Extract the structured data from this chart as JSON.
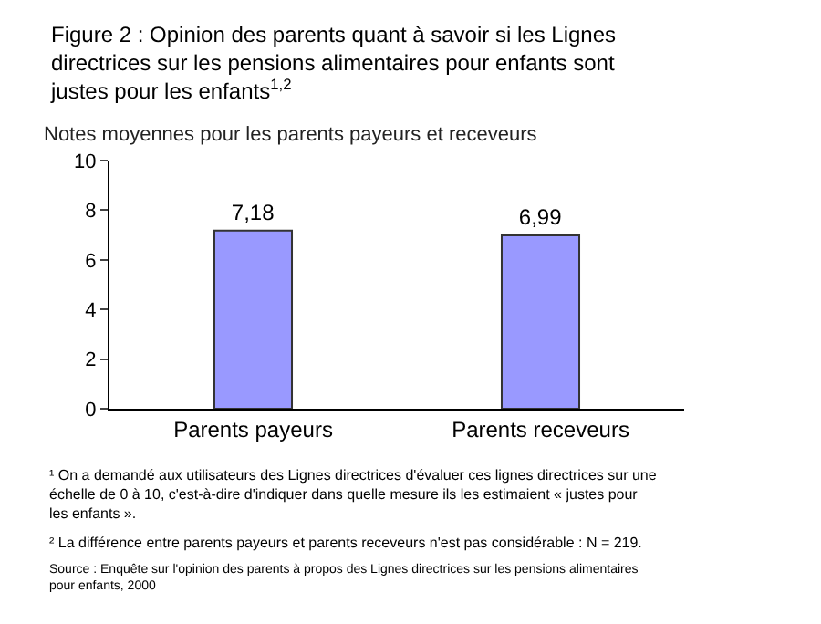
{
  "chart_data": {
    "type": "bar",
    "title": "Figure 2 : Opinion des parents quant à savoir si les Lignes directrices sur les pensions alimentaires pour enfants sont justes pour les enfants$^{1,2}$",
    "subtitle": "Notes moyennes pour les parents payeurs et receveurs",
    "categories": [
      "Parents payeurs",
      "Parents receveurs"
    ],
    "values": [
      7.18,
      6.99
    ],
    "value_labels": [
      "7,18",
      "6,99"
    ],
    "color": "#9999ff",
    "ylim": [
      0,
      10
    ],
    "yticks": [
      0,
      2,
      4,
      6,
      8,
      10
    ],
    "annotations": [
      "¹ On a demandé aux utilisateurs des Lignes directrices d'évaluer ces lignes directrices sur une échelle de 0 à 10, c'est-à-dire d'indiquer dans quelle mesure ils les estimaient « justes pour les enfants ».",
      "² La différence entre parents payeurs et parents receveurs n'est pas considérable : N = 219.",
      "Source : Enquête sur l'opinion des parents à propos des Lignes directrices sur les pensions alimentaires pour enfants, 2000"
    ]
  }
}
